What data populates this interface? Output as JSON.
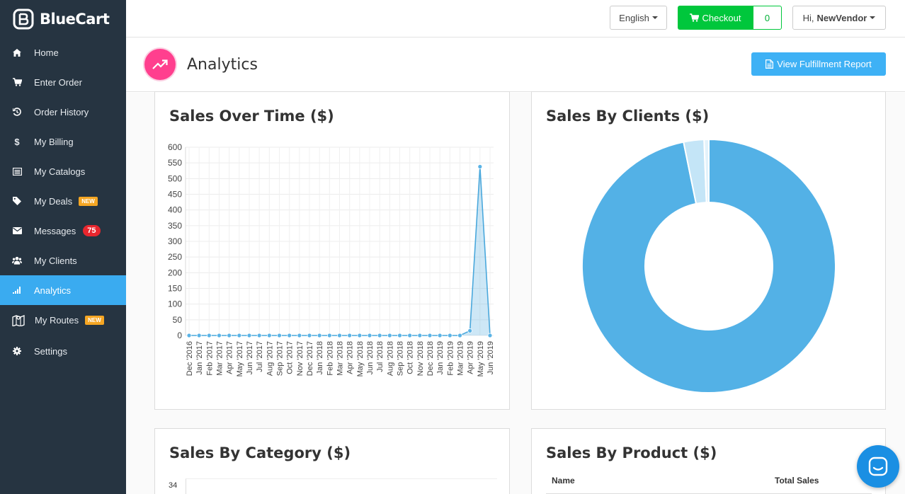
{
  "app": {
    "name": "BlueCart"
  },
  "sidebar": {
    "items": [
      {
        "label": "Home",
        "icon": "home-icon"
      },
      {
        "label": "Enter Order",
        "icon": "cart-icon"
      },
      {
        "label": "Order History",
        "icon": "history-icon"
      },
      {
        "label": "My Billing",
        "icon": "dollar-icon"
      },
      {
        "label": "My Catalogs",
        "icon": "catalog-icon"
      },
      {
        "label": "My Deals",
        "icon": "tag-icon",
        "badge": "NEW"
      },
      {
        "label": "Messages",
        "icon": "envelope-icon",
        "badge": "75"
      },
      {
        "label": "My Clients",
        "icon": "users-icon"
      },
      {
        "label": "Analytics",
        "icon": "signal-icon",
        "active": true
      },
      {
        "label": "My Routes",
        "icon": "map-icon",
        "badge": "NEW"
      },
      {
        "label": "Settings",
        "icon": "gear-icon"
      }
    ]
  },
  "topbar": {
    "language": "English",
    "checkout_label": "Checkout",
    "checkout_count": "0",
    "greeting": "Hi,",
    "user": "NewVendor"
  },
  "page": {
    "title": "Analytics",
    "report_button": "View Fulfillment Report"
  },
  "panels": {
    "sales_over_time": "Sales Over Time ($)",
    "sales_by_clients": "Sales By Clients ($)",
    "sales_by_category": "Sales By Category ($)",
    "sales_by_product": "Sales By Product ($)",
    "product_table": {
      "col_name": "Name",
      "col_total": "Total Sales"
    },
    "category_top_tick": "34"
  },
  "chart_data": [
    {
      "type": "area",
      "title": "Sales Over Time ($)",
      "x": [
        "Dec '2016",
        "Jan '2017",
        "Feb '2017",
        "Mar '2017",
        "Apr '2017",
        "May '2017",
        "Jun '2017",
        "Jul '2017",
        "Aug '2017",
        "Sep '2017",
        "Oct '2017",
        "Nov '2017",
        "Dec '2017",
        "Jan '2018",
        "Feb '2018",
        "Mar '2018",
        "Apr '2018",
        "May '2018",
        "Jun '2018",
        "Jul '2018",
        "Aug '2018",
        "Sep '2018",
        "Oct '2018",
        "Nov '2018",
        "Dec '2018",
        "Jan '2019",
        "Feb '2019",
        "Mar '2019",
        "Apr '2019",
        "May '2019",
        "Jun '2019"
      ],
      "values": [
        0,
        0,
        0,
        0,
        0,
        0,
        0,
        0,
        0,
        0,
        0,
        0,
        0,
        0,
        0,
        0,
        0,
        0,
        0,
        0,
        0,
        0,
        0,
        0,
        0,
        0,
        0,
        0,
        15,
        538,
        0
      ],
      "y_ticks": [
        "0",
        "50",
        "100",
        "150",
        "200",
        "250",
        "300",
        "350",
        "400",
        "450",
        "500",
        "550",
        "600"
      ],
      "ylim": [
        0,
        600
      ],
      "grid": true,
      "color": "#4aa8dc"
    },
    {
      "type": "pie",
      "title": "Sales By Clients ($)",
      "donut": true,
      "slices": [
        {
          "value": 96.8,
          "color": "#53b1e6"
        },
        {
          "value": 2.6,
          "color": "#c4e5f7"
        },
        {
          "value": 0.6,
          "color": "#e3f2fb"
        }
      ]
    }
  ]
}
